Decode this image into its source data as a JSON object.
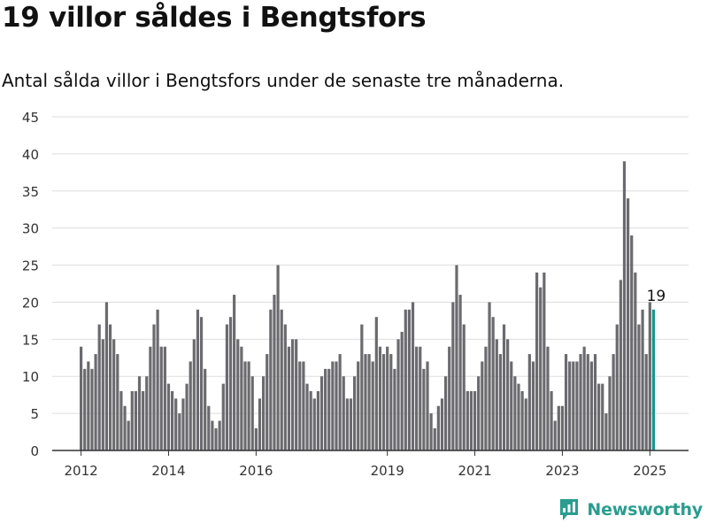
{
  "header": {
    "title": "19 villor såldes i Bengtsfors",
    "subtitle": "Antal sålda villor i Bengtsfors under de senaste tre månaderna."
  },
  "brand": {
    "name": "Newsworthy",
    "icon": "newsworthy-logo-icon"
  },
  "colors": {
    "bar": "#6b6a6f",
    "highlight": "#17958c",
    "grid": "#dddddd",
    "axis": "#333333",
    "brand": "#2a9d8f"
  },
  "chart_data": {
    "type": "bar",
    "y_ticks": [
      "0",
      "5",
      "10",
      "15",
      "20",
      "25",
      "30",
      "35",
      "40",
      "45"
    ],
    "ylim": [
      0,
      45
    ],
    "x_ticks": [
      {
        "label": "2012",
        "index": 0
      },
      {
        "label": "2014",
        "index": 24
      },
      {
        "label": "2016",
        "index": 48
      },
      {
        "label": "2019",
        "index": 84
      },
      {
        "label": "2021",
        "index": 108
      },
      {
        "label": "2023",
        "index": 132
      },
      {
        "label": "2025",
        "index": 156
      }
    ],
    "grid": true,
    "first_period": "2012-01",
    "values": [
      14,
      11,
      12,
      11,
      13,
      17,
      15,
      20,
      17,
      15,
      13,
      8,
      6,
      4,
      8,
      8,
      10,
      8,
      10,
      14,
      17,
      19,
      14,
      14,
      9,
      8,
      7,
      5,
      7,
      9,
      12,
      15,
      19,
      18,
      11,
      6,
      4,
      3,
      4,
      9,
      17,
      18,
      21,
      15,
      14,
      12,
      12,
      10,
      3,
      7,
      10,
      13,
      19,
      21,
      25,
      19,
      17,
      14,
      15,
      15,
      12,
      12,
      9,
      8,
      7,
      8,
      10,
      11,
      11,
      12,
      12,
      13,
      10,
      7,
      7,
      10,
      12,
      17,
      13,
      13,
      12,
      18,
      14,
      13,
      14,
      13,
      11,
      15,
      16,
      19,
      19,
      20,
      14,
      14,
      11,
      12,
      5,
      3,
      6,
      7,
      10,
      14,
      20,
      25,
      21,
      17,
      8,
      8,
      8,
      10,
      12,
      14,
      20,
      18,
      15,
      13,
      17,
      15,
      12,
      10,
      9,
      8,
      7,
      13,
      12,
      24,
      22,
      24,
      14,
      8,
      4,
      6,
      6,
      13,
      12,
      12,
      12,
      13,
      14,
      13,
      12,
      13,
      9,
      9,
      5,
      10,
      13,
      17,
      23,
      39,
      34,
      29,
      24,
      17,
      19,
      13,
      20,
      19
    ],
    "highlight_index": 157,
    "highlight_label": "19"
  }
}
